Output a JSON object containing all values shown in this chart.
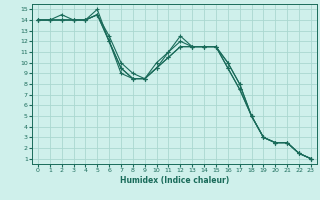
{
  "title": "",
  "xlabel": "Humidex (Indice chaleur)",
  "ylabel": "",
  "xlim": [
    -0.5,
    23.5
  ],
  "ylim": [
    0.5,
    15.5
  ],
  "xticks": [
    0,
    1,
    2,
    3,
    4,
    5,
    6,
    7,
    8,
    9,
    10,
    11,
    12,
    13,
    14,
    15,
    16,
    17,
    18,
    19,
    20,
    21,
    22,
    23
  ],
  "yticks": [
    1,
    2,
    3,
    4,
    5,
    6,
    7,
    8,
    9,
    10,
    11,
    12,
    13,
    14,
    15
  ],
  "bg_color": "#cff0eb",
  "line_color": "#1a6b5a",
  "grid_color": "#aad8d0",
  "lines": [
    {
      "x": [
        0,
        1,
        2,
        3,
        4,
        5,
        6,
        7,
        8,
        9,
        10,
        11,
        12,
        13,
        14,
        15,
        16,
        17,
        18,
        19,
        20,
        21,
        22,
        23
      ],
      "y": [
        14,
        14,
        14,
        14,
        14,
        14.5,
        12,
        9.5,
        8.5,
        8.5,
        10,
        11,
        12.5,
        11.5,
        11.5,
        11.5,
        10,
        8,
        5,
        3,
        2.5,
        2.5,
        1.5,
        1
      ]
    },
    {
      "x": [
        0,
        1,
        2,
        3,
        4,
        5,
        6,
        7,
        8,
        9,
        10,
        11,
        12,
        13,
        14,
        15,
        16,
        17,
        18,
        19,
        20,
        21,
        22,
        23
      ],
      "y": [
        14,
        14,
        14.5,
        14,
        14,
        14.5,
        12.5,
        10,
        9,
        8.5,
        9.5,
        11,
        12,
        11.5,
        11.5,
        11.5,
        10,
        8,
        5,
        3,
        2.5,
        2.5,
        1.5,
        1
      ]
    },
    {
      "x": [
        0,
        1,
        2,
        3,
        4,
        5,
        6,
        7,
        8,
        9,
        10,
        11,
        12,
        13,
        14,
        15,
        16,
        17,
        18,
        19,
        20,
        21,
        22,
        23
      ],
      "y": [
        14,
        14,
        14,
        14,
        14,
        15,
        12,
        9,
        8.5,
        8.5,
        9.5,
        10.5,
        11.5,
        11.5,
        11.5,
        11.5,
        9.5,
        7.5,
        5,
        3,
        2.5,
        2.5,
        1.5,
        1
      ]
    },
    {
      "x": [
        0,
        1,
        2,
        3,
        4,
        5,
        6,
        7,
        8,
        9,
        10,
        11,
        12,
        13,
        14,
        15,
        16,
        17,
        18,
        19,
        20,
        21,
        22,
        23
      ],
      "y": [
        14,
        14,
        14,
        14,
        14,
        14.5,
        12,
        9.5,
        8.5,
        8.5,
        9.5,
        10.5,
        11.5,
        11.5,
        11.5,
        11.5,
        9.5,
        7.5,
        5,
        3,
        2.5,
        2.5,
        1.5,
        1
      ]
    }
  ]
}
